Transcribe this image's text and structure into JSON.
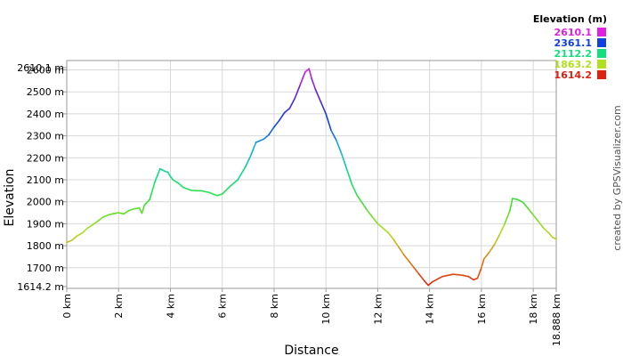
{
  "chart_data": {
    "type": "line",
    "xlabel": "Distance",
    "ylabel": "Elevation",
    "x_unit": "km",
    "y_unit": "m",
    "xlim": [
      0,
      18.888
    ],
    "ylim": [
      1614.2,
      2610.1
    ],
    "x_ticks": [
      {
        "value": 0,
        "label": "0 km"
      },
      {
        "value": 2,
        "label": "2 km"
      },
      {
        "value": 4,
        "label": "4 km"
      },
      {
        "value": 6,
        "label": "6 km"
      },
      {
        "value": 8,
        "label": "8 km"
      },
      {
        "value": 10,
        "label": "10 km"
      },
      {
        "value": 12,
        "label": "12 km"
      },
      {
        "value": 14,
        "label": "14 km"
      },
      {
        "value": 16,
        "label": "16 km"
      },
      {
        "value": 18,
        "label": "18 km"
      },
      {
        "value": 18.888,
        "label": "18.888 km"
      }
    ],
    "y_ticks": [
      {
        "value": 1614.2,
        "label": "1614.2 m"
      },
      {
        "value": 1700,
        "label": "1700 m"
      },
      {
        "value": 1800,
        "label": "1800 m"
      },
      {
        "value": 1900,
        "label": "1900 m"
      },
      {
        "value": 2000,
        "label": "2000 m"
      },
      {
        "value": 2100,
        "label": "2100 m"
      },
      {
        "value": 2200,
        "label": "2200 m"
      },
      {
        "value": 2300,
        "label": "2300 m"
      },
      {
        "value": 2400,
        "label": "2400 m"
      },
      {
        "value": 2500,
        "label": "2500 m"
      },
      {
        "value": 2600,
        "label": "2600 m"
      },
      {
        "value": 2610.1,
        "label": "2610.1 m"
      }
    ],
    "grid": true,
    "legend": {
      "title": "Elevation (m)",
      "placement": "top-right",
      "entries": [
        {
          "label": "2610.1",
          "color": "#e020e0"
        },
        {
          "label": "2361.1",
          "color": "#1040e0"
        },
        {
          "label": "2112.2",
          "color": "#10e080"
        },
        {
          "label": "1863.2",
          "color": "#b0e020"
        },
        {
          "label": "1614.2",
          "color": "#e02010"
        }
      ]
    },
    "color_stops": [
      {
        "elevation": 1614.2,
        "color": "#e02010"
      },
      {
        "elevation": 1739,
        "color": "#e08010"
      },
      {
        "elevation": 1863.2,
        "color": "#b0e020"
      },
      {
        "elevation": 1990,
        "color": "#40e030"
      },
      {
        "elevation": 2112.2,
        "color": "#10e080"
      },
      {
        "elevation": 2240,
        "color": "#10b0e0"
      },
      {
        "elevation": 2361.1,
        "color": "#1040e0"
      },
      {
        "elevation": 2490,
        "color": "#6020e0"
      },
      {
        "elevation": 2610.1,
        "color": "#e020e0"
      }
    ],
    "series": [
      {
        "x": [
          0,
          0.2,
          0.4,
          0.6,
          0.8,
          1.0,
          1.2,
          1.4,
          1.6,
          1.8,
          2.0,
          2.2,
          2.4,
          2.6,
          2.8,
          2.9,
          3.0,
          3.2,
          3.4,
          3.6,
          3.8,
          3.9,
          4.0,
          4.1,
          4.3,
          4.5,
          4.8,
          5.0,
          5.2,
          5.5,
          5.8,
          6.0,
          6.3,
          6.6,
          6.9,
          7.1,
          7.3,
          7.6,
          7.8,
          8.0,
          8.2,
          8.4,
          8.6,
          8.8,
          9.0,
          9.2,
          9.35,
          9.45,
          9.6,
          9.8,
          10.0,
          10.2,
          10.4,
          10.6,
          10.8,
          11.0,
          11.2,
          11.4,
          11.6,
          11.8,
          12.0,
          12.2,
          12.4,
          12.6,
          12.8,
          13.0,
          13.2,
          13.4,
          13.6,
          13.8,
          13.95,
          14.1,
          14.3,
          14.5,
          14.7,
          14.9,
          15.1,
          15.3,
          15.5,
          15.7,
          15.85,
          16.0,
          16.1,
          16.3,
          16.5,
          16.7,
          16.9,
          17.1,
          17.2,
          17.4,
          17.6,
          17.8,
          18.0,
          18.2,
          18.4,
          18.6,
          18.75,
          18.888
        ],
        "y": [
          1815,
          1825,
          1845,
          1858,
          1880,
          1895,
          1912,
          1930,
          1940,
          1946,
          1950,
          1945,
          1960,
          1968,
          1972,
          1948,
          1985,
          2010,
          2090,
          2150,
          2138,
          2135,
          2115,
          2100,
          2085,
          2065,
          2052,
          2050,
          2050,
          2042,
          2028,
          2035,
          2070,
          2100,
          2160,
          2210,
          2270,
          2285,
          2305,
          2340,
          2370,
          2405,
          2425,
          2470,
          2530,
          2590,
          2605,
          2560,
          2510,
          2455,
          2400,
          2325,
          2280,
          2220,
          2150,
          2080,
          2030,
          1995,
          1960,
          1930,
          1900,
          1880,
          1860,
          1830,
          1795,
          1760,
          1730,
          1700,
          1670,
          1640,
          1620,
          1635,
          1648,
          1660,
          1665,
          1670,
          1668,
          1665,
          1660,
          1645,
          1652,
          1700,
          1740,
          1770,
          1805,
          1850,
          1900,
          1960,
          2015,
          2010,
          1998,
          1970,
          1940,
          1910,
          1880,
          1858,
          1838,
          1830
        ]
      }
    ]
  },
  "credit": "created by GPSVisualizer.com"
}
